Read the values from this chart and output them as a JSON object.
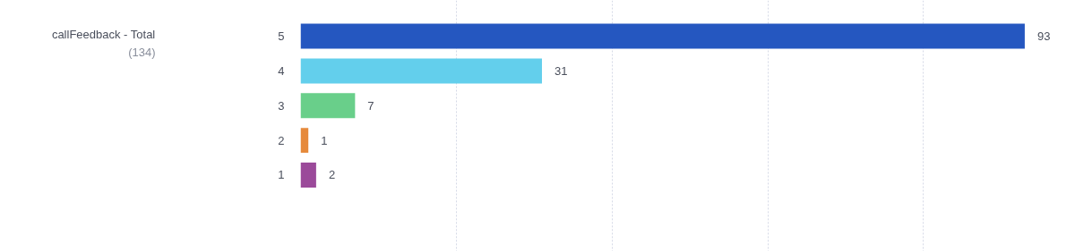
{
  "chart_data": {
    "type": "bar",
    "orientation": "horizontal",
    "title": "callFeedback - Total",
    "subtitle": "(134)",
    "categories": [
      "5",
      "4",
      "3",
      "2",
      "1"
    ],
    "values": [
      93,
      31,
      7,
      1,
      2
    ],
    "colors": [
      "#2557c0",
      "#63cfec",
      "#69cf8a",
      "#e68a3c",
      "#9b4a9a"
    ],
    "data_labels": true,
    "grid": "x",
    "tick_labels": "y"
  }
}
